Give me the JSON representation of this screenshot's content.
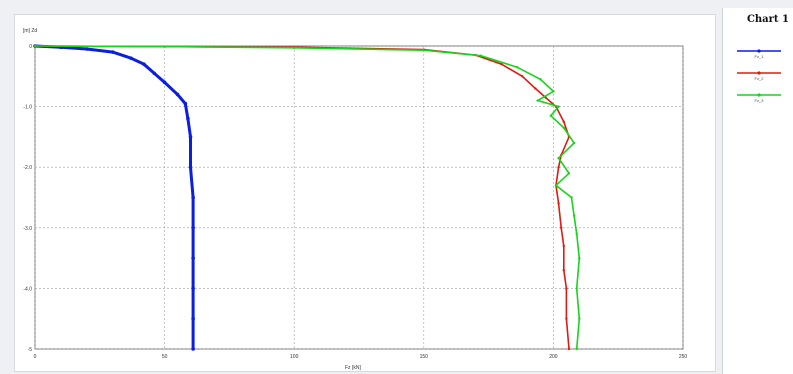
{
  "chart_data": {
    "type": "line",
    "title": "Chart 1",
    "xlabel": "Fz [kN]",
    "ylabel": "[m] Zd",
    "xlim": [
      0,
      250
    ],
    "ylim": [
      -5,
      0
    ],
    "grid": true,
    "legend_position": "right",
    "x_ticks": [
      "0",
      "50",
      "100",
      "150",
      "200",
      "250"
    ],
    "y_ticks": [
      "0",
      "-1.0",
      "-2.0",
      "-3.0",
      "-4.0",
      "-5"
    ],
    "series": [
      {
        "name": "Fz_1",
        "color": "#0a1fe0",
        "points": [
          [
            0,
            0
          ],
          [
            10,
            -0.02
          ],
          [
            20,
            -0.05
          ],
          [
            30,
            -0.1
          ],
          [
            37,
            -0.2
          ],
          [
            42,
            -0.3
          ],
          [
            46,
            -0.45
          ],
          [
            50,
            -0.6
          ],
          [
            55,
            -0.8
          ],
          [
            58,
            -0.95
          ],
          [
            59,
            -1.2
          ],
          [
            60,
            -1.5
          ],
          [
            60,
            -2.0
          ],
          [
            61,
            -2.5
          ],
          [
            61,
            -3.0
          ],
          [
            61,
            -3.5
          ],
          [
            61,
            -4.0
          ],
          [
            61,
            -4.5
          ],
          [
            61,
            -5.0
          ]
        ]
      },
      {
        "name": "Fz_2",
        "color": "#e01a10",
        "points": [
          [
            0,
            0
          ],
          [
            50,
            -0.01
          ],
          [
            100,
            -0.02
          ],
          [
            150,
            -0.06
          ],
          [
            170,
            -0.15
          ],
          [
            180,
            -0.3
          ],
          [
            188,
            -0.5
          ],
          [
            193,
            -0.7
          ],
          [
            197,
            -0.85
          ],
          [
            201,
            -1.0
          ],
          [
            204,
            -1.25
          ],
          [
            206,
            -1.5
          ],
          [
            203,
            -1.8
          ],
          [
            202,
            -2.0
          ],
          [
            201,
            -2.3
          ],
          [
            202,
            -2.6
          ],
          [
            203,
            -3.0
          ],
          [
            204,
            -3.3
          ],
          [
            204,
            -3.7
          ],
          [
            205,
            -4.0
          ],
          [
            205,
            -4.5
          ],
          [
            206,
            -5.0
          ]
        ]
      },
      {
        "name": "Fz_3",
        "color": "#18d41a",
        "points": [
          [
            0,
            0
          ],
          [
            50,
            -0.01
          ],
          [
            100,
            -0.03
          ],
          [
            150,
            -0.07
          ],
          [
            172,
            -0.16
          ],
          [
            186,
            -0.35
          ],
          [
            195,
            -0.55
          ],
          [
            200,
            -0.75
          ],
          [
            194,
            -0.9
          ],
          [
            202,
            -1.0
          ],
          [
            199,
            -1.15
          ],
          [
            204,
            -1.35
          ],
          [
            208,
            -1.6
          ],
          [
            202,
            -1.85
          ],
          [
            206,
            -2.1
          ],
          [
            201,
            -2.3
          ],
          [
            207,
            -2.5
          ],
          [
            208,
            -2.8
          ],
          [
            209,
            -3.1
          ],
          [
            210,
            -3.5
          ],
          [
            209,
            -4.0
          ],
          [
            210,
            -4.5
          ],
          [
            209,
            -5.0
          ]
        ]
      }
    ]
  }
}
